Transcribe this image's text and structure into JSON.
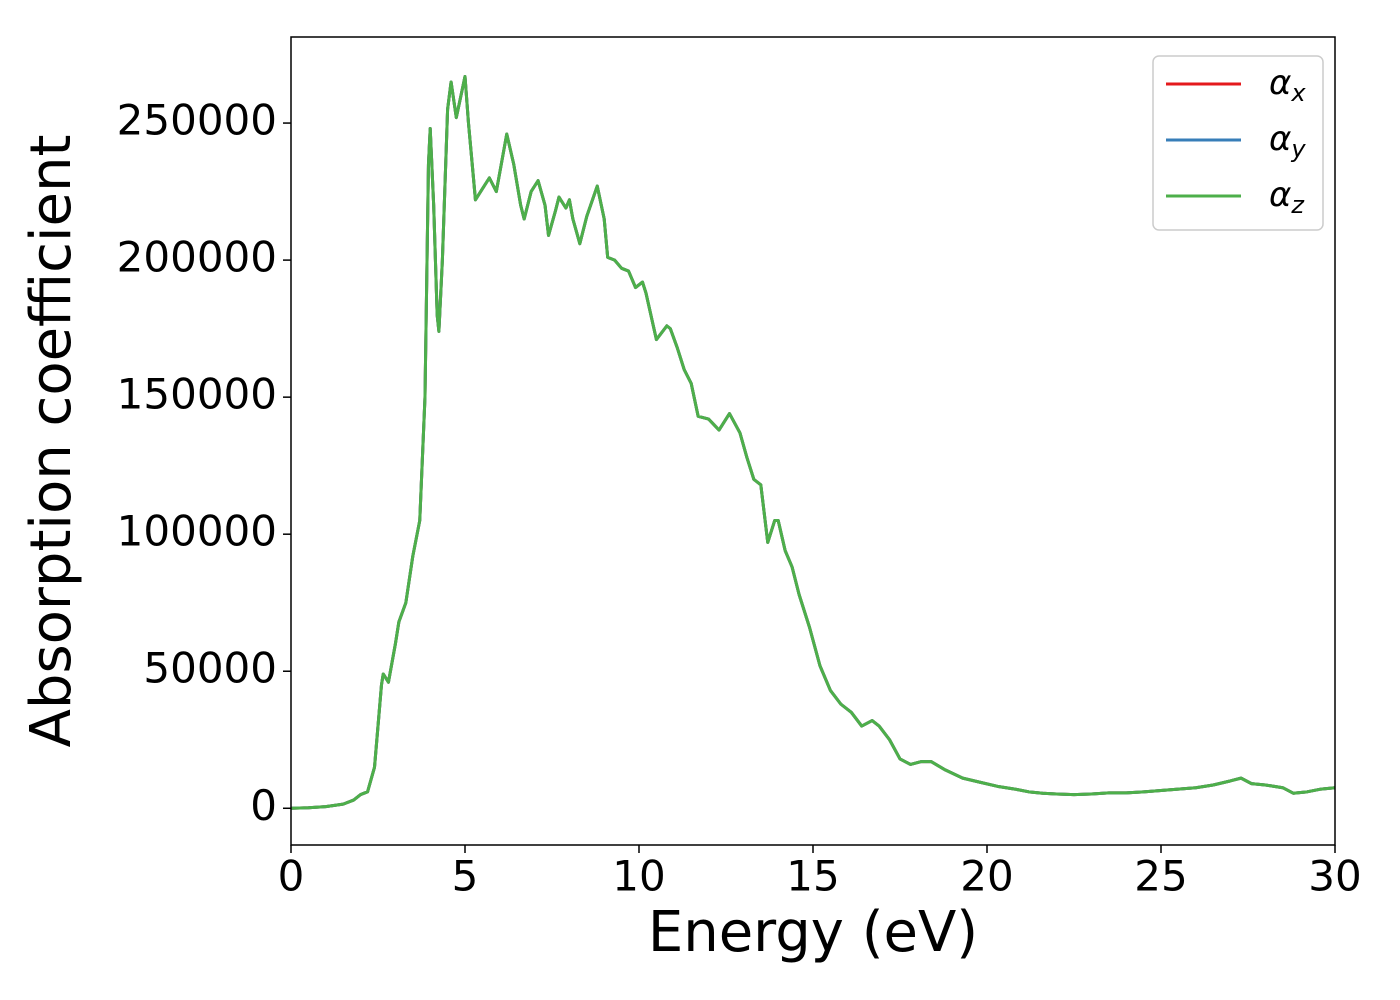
{
  "chart_data": {
    "type": "line",
    "xlabel": "Energy (eV)",
    "ylabel": "Absorption coefficient",
    "x": [
      0,
      0.5,
      1,
      1.5,
      1.8,
      2.0,
      2.2,
      2.4,
      2.6,
      2.65,
      2.8,
      3.0,
      3.1,
      3.3,
      3.5,
      3.7,
      3.85,
      3.95,
      4.0,
      4.1,
      4.2,
      4.25,
      4.35,
      4.5,
      4.6,
      4.75,
      4.85,
      5.0,
      5.1,
      5.3,
      5.5,
      5.7,
      5.9,
      6.0,
      6.2,
      6.4,
      6.6,
      6.7,
      6.9,
      7.1,
      7.3,
      7.4,
      7.6,
      7.7,
      7.9,
      8.0,
      8.1,
      8.3,
      8.5,
      8.8,
      9.0,
      9.1,
      9.3,
      9.5,
      9.7,
      9.9,
      10.1,
      10.2,
      10.5,
      10.8,
      10.9,
      11.1,
      11.3,
      11.5,
      11.7,
      12.0,
      12.3,
      12.6,
      12.9,
      13.1,
      13.3,
      13.5,
      13.7,
      13.9,
      14.0,
      14.2,
      14.4,
      14.6,
      14.9,
      15.2,
      15.5,
      15.8,
      16.1,
      16.4,
      16.7,
      16.9,
      17.2,
      17.5,
      17.8,
      18.1,
      18.4,
      18.8,
      19.3,
      19.8,
      20.3,
      20.8,
      21.2,
      21.6,
      22.0,
      22.5,
      23.0,
      23.5,
      24.0,
      24.5,
      25.0,
      25.5,
      26.0,
      26.5,
      27.0,
      27.3,
      27.6,
      28.0,
      28.5,
      28.8,
      29.2,
      29.6,
      30.0
    ],
    "series": [
      {
        "name": "αx",
        "color": "#e41a1c",
        "values": [
          0,
          200,
          600,
          1500,
          3000,
          5000,
          6000,
          15000,
          45000,
          49000,
          46000,
          60000,
          68000,
          75000,
          92000,
          105000,
          150000,
          235000,
          248000,
          220000,
          180000,
          174000,
          200000,
          255000,
          265000,
          252000,
          258000,
          267000,
          250000,
          222000,
          226000,
          230000,
          225000,
          232000,
          246000,
          235000,
          220000,
          215000,
          225000,
          229000,
          220000,
          209000,
          218000,
          223000,
          219000,
          222000,
          215000,
          206000,
          216000,
          227000,
          215000,
          201000,
          200000,
          197000,
          196000,
          190000,
          192000,
          188000,
          171000,
          176000,
          175000,
          168000,
          160000,
          155000,
          143000,
          142000,
          138000,
          144000,
          137000,
          128000,
          120000,
          118000,
          97000,
          105000,
          105000,
          94000,
          88000,
          78000,
          66000,
          52000,
          43000,
          38000,
          35000,
          30000,
          32000,
          30000,
          25000,
          18000,
          16000,
          17000,
          17000,
          14000,
          11000,
          9500,
          8000,
          7000,
          6000,
          5500,
          5200,
          5000,
          5200,
          5600,
          5600,
          6000,
          6500,
          7000,
          7500,
          8500,
          10000,
          11000,
          9000,
          8500,
          7500,
          5500,
          6000,
          7000,
          7500
        ]
      },
      {
        "name": "αy",
        "color": "#377eb8",
        "values": [
          0,
          200,
          600,
          1500,
          3000,
          5000,
          6000,
          15000,
          45000,
          49000,
          46000,
          60000,
          68000,
          75000,
          92000,
          105000,
          150000,
          235000,
          248000,
          220000,
          180000,
          174000,
          200000,
          255000,
          265000,
          252000,
          258000,
          267000,
          250000,
          222000,
          226000,
          230000,
          225000,
          232000,
          246000,
          235000,
          220000,
          215000,
          225000,
          229000,
          220000,
          209000,
          218000,
          223000,
          219000,
          222000,
          215000,
          206000,
          216000,
          227000,
          215000,
          201000,
          200000,
          197000,
          196000,
          190000,
          192000,
          188000,
          171000,
          176000,
          175000,
          168000,
          160000,
          155000,
          143000,
          142000,
          138000,
          144000,
          137000,
          128000,
          120000,
          118000,
          97000,
          105000,
          105000,
          94000,
          88000,
          78000,
          66000,
          52000,
          43000,
          38000,
          35000,
          30000,
          32000,
          30000,
          25000,
          18000,
          16000,
          17000,
          17000,
          14000,
          11000,
          9500,
          8000,
          7000,
          6000,
          5500,
          5200,
          5000,
          5200,
          5600,
          5600,
          6000,
          6500,
          7000,
          7500,
          8500,
          10000,
          11000,
          9000,
          8500,
          7500,
          5500,
          6000,
          7000,
          7500
        ]
      },
      {
        "name": "αz",
        "color": "#4daf4a",
        "values": [
          0,
          200,
          600,
          1500,
          3000,
          5000,
          6000,
          15000,
          45000,
          49000,
          46000,
          60000,
          68000,
          75000,
          92000,
          105000,
          150000,
          235000,
          248000,
          220000,
          180000,
          174000,
          200000,
          255000,
          265000,
          252000,
          258000,
          267000,
          250000,
          222000,
          226000,
          230000,
          225000,
          232000,
          246000,
          235000,
          220000,
          215000,
          225000,
          229000,
          220000,
          209000,
          218000,
          223000,
          219000,
          222000,
          215000,
          206000,
          216000,
          227000,
          215000,
          201000,
          200000,
          197000,
          196000,
          190000,
          192000,
          188000,
          171000,
          176000,
          175000,
          168000,
          160000,
          155000,
          143000,
          142000,
          138000,
          144000,
          137000,
          128000,
          120000,
          118000,
          97000,
          105000,
          105000,
          94000,
          88000,
          78000,
          66000,
          52000,
          43000,
          38000,
          35000,
          30000,
          32000,
          30000,
          25000,
          18000,
          16000,
          17000,
          17000,
          14000,
          11000,
          9500,
          8000,
          7000,
          6000,
          5500,
          5200,
          5000,
          5200,
          5600,
          5600,
          6000,
          6500,
          7000,
          7500,
          8500,
          10000,
          11000,
          9000,
          8500,
          7500,
          5500,
          6000,
          7000,
          7500
        ]
      }
    ],
    "xlim": [
      0,
      30
    ],
    "xticks": [
      0,
      5,
      10,
      15,
      20,
      25,
      30
    ],
    "ylim": [
      -13400,
      281400
    ],
    "yticks": [
      0,
      50000,
      100000,
      150000,
      200000,
      250000
    ],
    "grid": false,
    "legend": "upper right"
  }
}
